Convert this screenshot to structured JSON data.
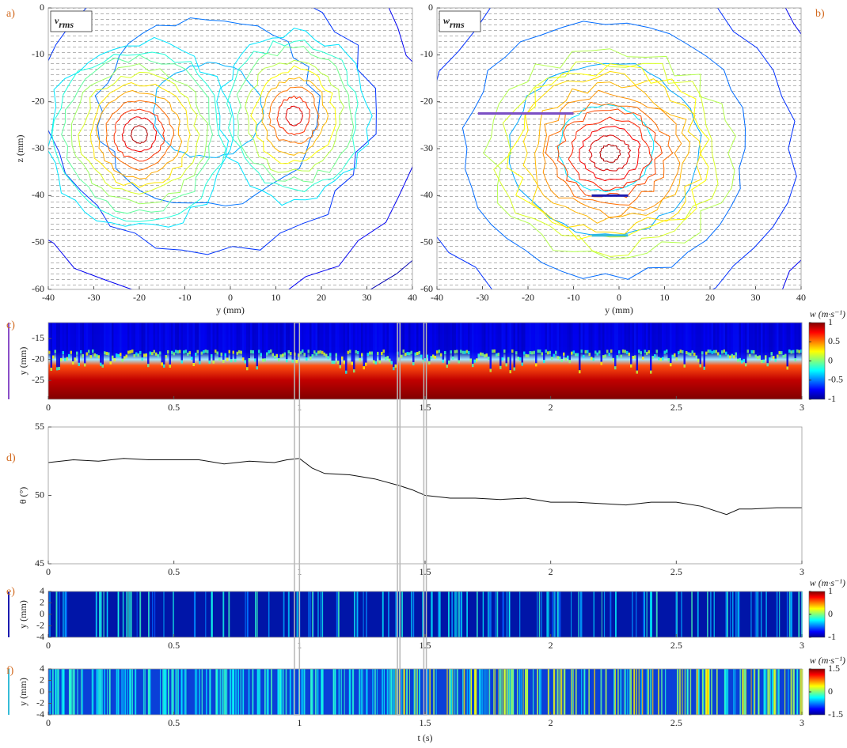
{
  "time_windows": [
    [
      0.98,
      1.0
    ],
    [
      1.39,
      1.4
    ],
    [
      1.495,
      1.505
    ]
  ],
  "chart_data": [
    {
      "type": "contour",
      "label": "a)",
      "title": "v",
      "title_sub": "rms",
      "xlabel": "y (mm)",
      "ylabel": "z (mm)",
      "xlim": [
        -40,
        40
      ],
      "xticks": [
        -40,
        -30,
        -20,
        -10,
        0,
        10,
        20,
        30,
        40
      ],
      "ylim": [
        -60,
        0
      ],
      "yticks": [
        -60,
        -50,
        -40,
        -30,
        -20,
        -10,
        0
      ]
    },
    {
      "type": "contour",
      "label": "b)",
      "title": "w",
      "title_sub": "rms",
      "xlabel": "y (mm)",
      "xlim": [
        -40,
        40
      ],
      "xticks": [
        -40,
        -30,
        -20,
        -10,
        0,
        10,
        20,
        30,
        40
      ],
      "ylim": [
        -60,
        0
      ],
      "yticks": [
        -60,
        -50,
        -40,
        -30,
        -20,
        -10,
        0
      ],
      "segments": [
        {
          "color": "#7b4fc4",
          "y": [
            -31,
            -10
          ],
          "z": -22.5
        },
        {
          "color": "#1c1cb0",
          "y": [
            -6,
            2
          ],
          "z": -40
        },
        {
          "color": "#36bcd8",
          "y": [
            -6,
            2
          ],
          "z": -48.5
        }
      ]
    },
    {
      "type": "heatmap",
      "label": "c)",
      "ylabel": "y (mm)",
      "xlim": [
        0,
        3
      ],
      "xticks": [
        0,
        0.5,
        1,
        1.5,
        2,
        2.5,
        3
      ],
      "ylim": [
        -29.5,
        -11.2
      ],
      "yticks": [
        -25,
        -20,
        -15
      ],
      "colorbar_label": "w (m·s⁻¹)",
      "clim": [
        -1,
        1
      ],
      "cticks": [
        -1,
        -0.5,
        0,
        0.5,
        1
      ],
      "side_color": "#8b4fc8"
    },
    {
      "type": "line",
      "label": "d)",
      "ylabel": "θ (°)",
      "xlim": [
        0,
        3
      ],
      "xticks": [
        0,
        0.5,
        1,
        1.5,
        2,
        2.5,
        3
      ],
      "ylim": [
        45,
        55
      ],
      "yticks": [
        45,
        50,
        55
      ],
      "x": [
        0,
        0.1,
        0.2,
        0.3,
        0.4,
        0.5,
        0.6,
        0.7,
        0.8,
        0.9,
        0.95,
        1.0,
        1.05,
        1.1,
        1.2,
        1.3,
        1.4,
        1.45,
        1.5,
        1.6,
        1.7,
        1.8,
        1.9,
        2.0,
        2.1,
        2.2,
        2.3,
        2.4,
        2.5,
        2.6,
        2.7,
        2.75,
        2.8,
        2.9,
        3.0
      ],
      "series": [
        {
          "color": "#111111",
          "values": [
            52.4,
            52.6,
            52.5,
            52.7,
            52.6,
            52.6,
            52.6,
            52.3,
            52.5,
            52.4,
            52.6,
            52.7,
            52.0,
            51.6,
            51.5,
            51.2,
            50.7,
            50.4,
            50.0,
            49.8,
            49.8,
            49.7,
            49.8,
            49.5,
            49.5,
            49.4,
            49.3,
            49.5,
            49.5,
            49.2,
            48.6,
            49.0,
            49.0,
            49.1,
            49.1
          ]
        }
      ]
    },
    {
      "type": "heatmap",
      "label": "e)",
      "ylabel": "y (mm)",
      "xlim": [
        0,
        3
      ],
      "xticks": [
        0,
        0.5,
        1,
        1.5,
        2,
        2.5,
        3
      ],
      "ylim": [
        -4,
        4
      ],
      "yticks": [
        -4,
        -2,
        0,
        2,
        4
      ],
      "colorbar_label": "w (m·s⁻¹)",
      "clim": [
        -1,
        1
      ],
      "cticks": [
        -1,
        0,
        1
      ],
      "side_color": "#1c1cb0"
    },
    {
      "type": "heatmap",
      "label": "f)",
      "ylabel": "y (mm)",
      "xlabel": "t (s)",
      "xlim": [
        0,
        3
      ],
      "xticks": [
        0,
        0.5,
        1,
        1.5,
        2,
        2.5,
        3
      ],
      "ylim": [
        -4,
        4
      ],
      "yticks": [
        -4,
        -2,
        0,
        2,
        4
      ],
      "colorbar_label": "w (m·s⁻¹)",
      "clim": [
        -1.5,
        1.5
      ],
      "cticks": [
        -1.5,
        0,
        1.5
      ],
      "side_color": "#36bcd8"
    }
  ]
}
